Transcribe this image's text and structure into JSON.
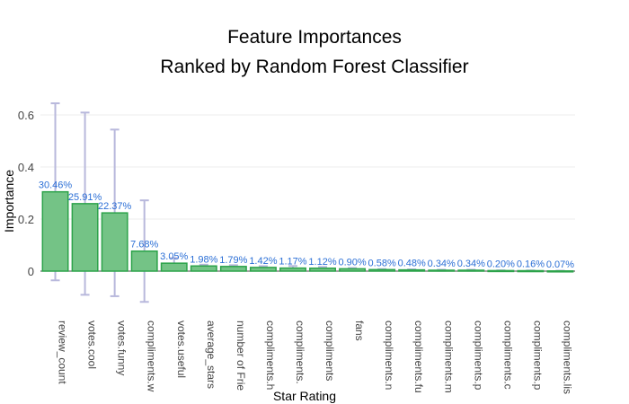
{
  "chart_data": {
    "type": "bar",
    "title": "Feature Importances",
    "subtitle": "Ranked by Random Forest Classifier",
    "xlabel": "Star Rating",
    "ylabel": "Importance",
    "ylim": [
      -0.2,
      0.65
    ],
    "yticks": [
      0,
      0.2,
      0.4,
      0.6
    ],
    "grid": true,
    "categories": [
      "review_count",
      "votes.cool",
      "votes.funny",
      "compliments.w",
      "votes.useful",
      "average_stars",
      "number of Frie",
      "compliments.h",
      "compliments.",
      "compliments",
      "fans",
      "compliments.n",
      "compliments.fu",
      "compliments.m",
      "compliments.p",
      "compliments.c",
      "compliments.p",
      "compliments.lis"
    ],
    "values": [
      0.3046,
      0.2591,
      0.2237,
      0.0768,
      0.0305,
      0.0198,
      0.0179,
      0.0142,
      0.0117,
      0.0112,
      0.009,
      0.0058,
      0.0048,
      0.0034,
      0.0034,
      0.002,
      0.0016,
      0.0007
    ],
    "labels": [
      "30.46%",
      "25.91%",
      "22.37%",
      "7.68%",
      "3.05%",
      "1.98%",
      "1.79%",
      "1.42%",
      "1.17%",
      "1.12%",
      "0.90%",
      "0.58%",
      "0.48%",
      "0.34%",
      "0.34%",
      "0.20%",
      "0.16%",
      "0.07%"
    ],
    "error": [
      0.34,
      0.35,
      0.32,
      0.195,
      0.02,
      0.005,
      0.005,
      0.005,
      0.008,
      0.005,
      0.003,
      0.002,
      0.002,
      0.002,
      0.002,
      0.001,
      0.001,
      0.001
    ]
  },
  "colors": {
    "bar_fill": "#74c386",
    "bar_stroke": "#2ca34a",
    "error_bar": "#b8b8dc",
    "data_label": "#2b6fd6",
    "grid": "#eeeeee",
    "zero_line": "#444444"
  }
}
